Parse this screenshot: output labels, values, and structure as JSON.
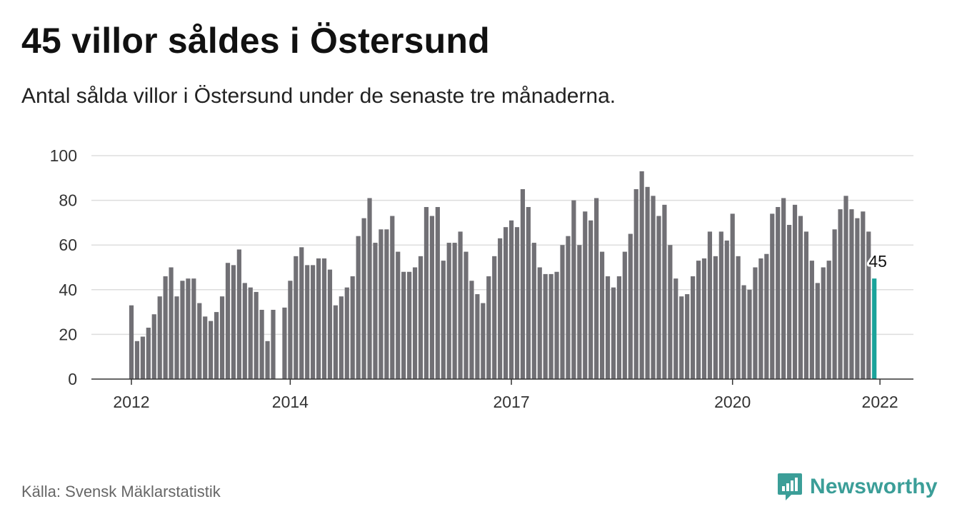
{
  "header": {
    "title": "45 villor såldes i Östersund",
    "subtitle": "Antal sålda villor i Östersund under de senaste tre månaderna."
  },
  "footer": {
    "source": "Källa: Svensk Mäklarstatistik",
    "brand": "Newsworthy",
    "brand_icon": "bar-chart-speech-bubble-icon"
  },
  "colors": {
    "bar": "#717075",
    "highlight": "#1aa39a",
    "grid": "#dddddd",
    "axis": "#333333",
    "brand": "#3b9e98"
  },
  "chart_data": {
    "type": "bar",
    "ylim": [
      0,
      100
    ],
    "yticks": [
      0,
      20,
      40,
      60,
      80,
      100
    ],
    "xtick_labels": [
      {
        "label": "2012",
        "index": 0
      },
      {
        "label": "2014",
        "index": 27
      },
      {
        "label": "2017",
        "index": 66
      },
      {
        "label": "2020",
        "index": 105
      },
      {
        "label": "2022",
        "index": 131
      }
    ],
    "gap_after_index": 25,
    "values": [
      33,
      17,
      19,
      23,
      29,
      37,
      46,
      50,
      37,
      44,
      45,
      45,
      34,
      28,
      26,
      30,
      37,
      52,
      51,
      58,
      43,
      41,
      39,
      31,
      17,
      31,
      32,
      44,
      55,
      59,
      51,
      51,
      54,
      54,
      49,
      33,
      37,
      41,
      46,
      64,
      72,
      81,
      61,
      67,
      67,
      73,
      57,
      48,
      48,
      50,
      55,
      77,
      73,
      77,
      53,
      61,
      61,
      66,
      57,
      44,
      38,
      34,
      46,
      55,
      63,
      68,
      71,
      68,
      85,
      77,
      61,
      50,
      47,
      47,
      48,
      60,
      64,
      80,
      60,
      75,
      71,
      81,
      57,
      46,
      41,
      46,
      57,
      65,
      85,
      93,
      86,
      82,
      73,
      78,
      60,
      45,
      37,
      38,
      46,
      53,
      54,
      66,
      55,
      66,
      62,
      74,
      55,
      42,
      40,
      50,
      54,
      56,
      74,
      77,
      81,
      69,
      78,
      73,
      66,
      53,
      43,
      50,
      53,
      67,
      76,
      82,
      76,
      72,
      75,
      66,
      45
    ],
    "highlight_index": 130,
    "highlight_label": "45"
  }
}
